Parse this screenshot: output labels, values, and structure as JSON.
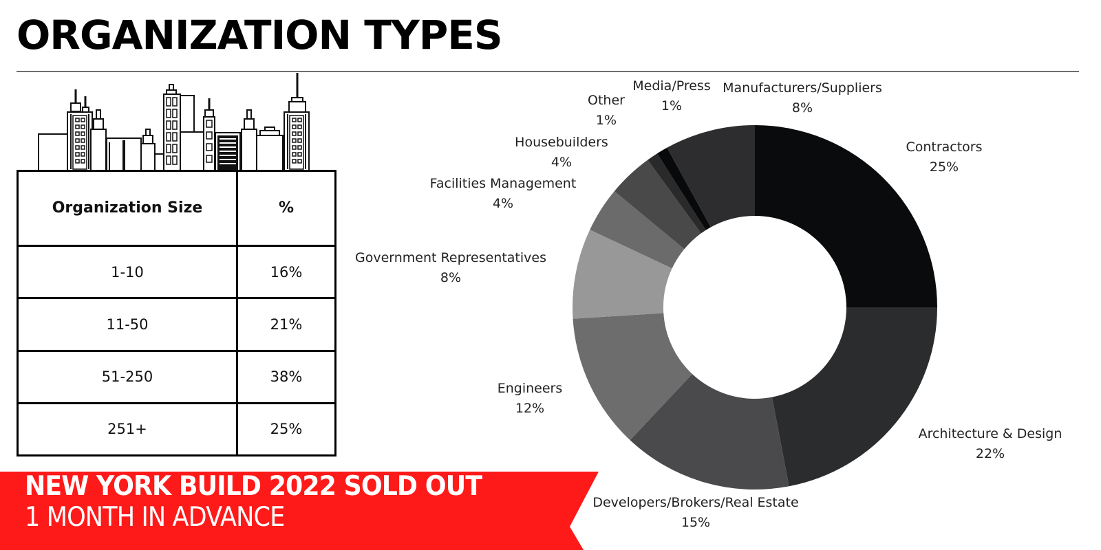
{
  "header": {
    "title": "ORGANIZATION TYPES"
  },
  "table": {
    "headers": [
      "Organization Size",
      "%"
    ],
    "rows": [
      {
        "size": "1-10",
        "pct": "16%"
      },
      {
        "size": "11-50",
        "pct": "21%"
      },
      {
        "size": "51-250",
        "pct": "38%"
      },
      {
        "size": "251+",
        "pct": "25%"
      }
    ]
  },
  "banner": {
    "line1": "NEW YORK BUILD 2022 SOLD OUT",
    "line2": "1 MONTH IN ADVANCE",
    "color": "#ff1a1a"
  },
  "illustration": {
    "icon": "city-skyline-icon"
  },
  "chart_data": {
    "type": "pie",
    "variant": "donut",
    "title": "",
    "start": "top",
    "direction": "clockwise",
    "series": [
      {
        "name": "Contractors",
        "value": 25,
        "label": "25%",
        "color": "#0a0b0c"
      },
      {
        "name": "Architecture & Design",
        "value": 22,
        "label": "22%",
        "color": "#2b2c2e"
      },
      {
        "name": "Developers/Brokers/Real Estate",
        "value": 15,
        "label": "15%",
        "color": "#4a4a4c"
      },
      {
        "name": "Engineers",
        "value": 12,
        "label": "12%",
        "color": "#6e6d6e"
      },
      {
        "name": "Government Representatives",
        "value": 8,
        "label": "8%",
        "color": "#999899"
      },
      {
        "name": "Facilities Management",
        "value": 4,
        "label": "4%",
        "color": "#6c6b6c"
      },
      {
        "name": "Housebuilders",
        "value": 4,
        "label": "4%",
        "color": "#4a494a"
      },
      {
        "name": "Other",
        "value": 1,
        "label": "1%",
        "color": "#2a2a2b"
      },
      {
        "name": "Media/Press",
        "value": 1,
        "label": "1%",
        "color": "#08090a"
      },
      {
        "name": "Manufacturers/Suppliers",
        "value": 8,
        "label": "8%",
        "color": "#2d2d2f"
      }
    ]
  }
}
